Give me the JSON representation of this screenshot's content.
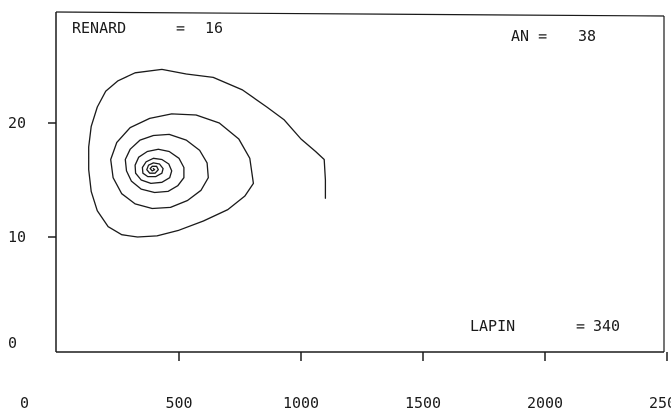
{
  "readouts": {
    "renard_label": "RENARD",
    "renard_eq": "=",
    "renard_value": "16",
    "an_label": "AN =",
    "an_value": "38",
    "lapin_label": "LAPIN",
    "lapin_eq": "=",
    "lapin_value": "340"
  },
  "chart_data": {
    "type": "line",
    "title": "",
    "xlabel": "",
    "ylabel": "",
    "xlim": [
      0,
      2500
    ],
    "ylim": [
      0,
      26
    ],
    "x_ticks": [
      {
        "value": 0,
        "label": "0"
      },
      {
        "value": 500,
        "label": "500"
      },
      {
        "value": 1000,
        "label": "1000"
      },
      {
        "value": 1500,
        "label": "1500"
      },
      {
        "value": 2000,
        "label": "2000"
      },
      {
        "value": 2500,
        "label": "2500"
      }
    ],
    "y_ticks": [
      {
        "value": 0,
        "label": "0"
      },
      {
        "value": 10,
        "label": "10"
      },
      {
        "value": 20,
        "label": "20"
      }
    ],
    "grid": false,
    "series": [
      {
        "color": "#1a1a1a",
        "points": [
          [
            1100,
            13.4
          ],
          [
            1100,
            15.0
          ],
          [
            1095,
            16.8
          ],
          [
            1060,
            17.5
          ],
          [
            1000,
            18.6
          ],
          [
            930,
            20.3
          ],
          [
            860,
            21.4
          ],
          [
            760,
            22.9
          ],
          [
            640,
            24.0
          ],
          [
            530,
            24.3
          ],
          [
            430,
            24.7
          ],
          [
            320,
            24.4
          ],
          [
            250,
            23.7
          ],
          [
            200,
            22.8
          ],
          [
            165,
            21.4
          ],
          [
            140,
            19.7
          ],
          [
            130,
            17.9
          ],
          [
            130,
            15.9
          ],
          [
            140,
            14.0
          ],
          [
            165,
            12.3
          ],
          [
            210,
            10.9
          ],
          [
            265,
            10.2
          ],
          [
            330,
            10.0
          ],
          [
            410,
            10.1
          ],
          [
            500,
            10.6
          ],
          [
            600,
            11.4
          ],
          [
            700,
            12.4
          ],
          [
            770,
            13.6
          ],
          [
            805,
            14.7
          ],
          [
            790,
            16.9
          ],
          [
            745,
            18.6
          ],
          [
            665,
            20.0
          ],
          [
            570,
            20.7
          ],
          [
            470,
            20.8
          ],
          [
            380,
            20.4
          ],
          [
            300,
            19.6
          ],
          [
            245,
            18.3
          ],
          [
            220,
            16.8
          ],
          [
            230,
            15.2
          ],
          [
            265,
            13.8
          ],
          [
            320,
            12.9
          ],
          [
            390,
            12.5
          ],
          [
            465,
            12.6
          ],
          [
            535,
            13.2
          ],
          [
            590,
            14.1
          ],
          [
            620,
            15.2
          ],
          [
            615,
            16.5
          ],
          [
            585,
            17.6
          ],
          [
            530,
            18.5
          ],
          [
            460,
            19.0
          ],
          [
            395,
            18.9
          ],
          [
            340,
            18.5
          ],
          [
            300,
            17.7
          ],
          [
            280,
            16.8
          ],
          [
            285,
            15.8
          ],
          [
            305,
            14.9
          ],
          [
            345,
            14.2
          ],
          [
            400,
            13.9
          ],
          [
            455,
            14.0
          ],
          [
            495,
            14.5
          ],
          [
            520,
            15.2
          ],
          [
            520,
            16.1
          ],
          [
            500,
            16.9
          ],
          [
            460,
            17.5
          ],
          [
            415,
            17.7
          ],
          [
            370,
            17.5
          ],
          [
            335,
            17.0
          ],
          [
            320,
            16.3
          ],
          [
            322,
            15.6
          ],
          [
            345,
            15.0
          ],
          [
            385,
            14.7
          ],
          [
            430,
            14.8
          ],
          [
            462,
            15.2
          ],
          [
            470,
            15.8
          ],
          [
            458,
            16.4
          ],
          [
            430,
            16.8
          ],
          [
            395,
            16.9
          ],
          [
            365,
            16.6
          ],
          [
            350,
            16.1
          ],
          [
            352,
            15.6
          ],
          [
            372,
            15.3
          ],
          [
            405,
            15.3
          ],
          [
            430,
            15.6
          ],
          [
            435,
            16.0
          ],
          [
            420,
            16.4
          ],
          [
            395,
            16.5
          ],
          [
            375,
            16.3
          ],
          [
            368,
            15.9
          ],
          [
            380,
            15.6
          ],
          [
            402,
            15.6
          ],
          [
            415,
            15.9
          ],
          [
            408,
            16.2
          ],
          [
            390,
            16.2
          ],
          [
            382,
            16.0
          ],
          [
            390,
            15.8
          ],
          [
            400,
            15.9
          ],
          [
            395,
            16.0
          ]
        ]
      }
    ]
  }
}
